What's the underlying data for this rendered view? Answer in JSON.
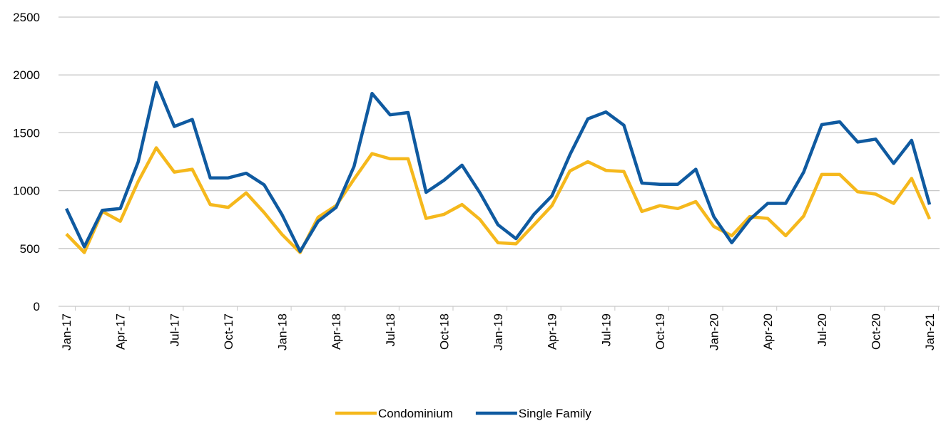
{
  "chart_data": {
    "type": "line",
    "categories": [
      "Jan-17",
      null,
      null,
      "Apr-17",
      null,
      null,
      "Jul-17",
      null,
      null,
      "Oct-17",
      null,
      null,
      "Jan-18",
      null,
      null,
      "Apr-18",
      null,
      null,
      "Jul-18",
      null,
      null,
      "Oct-18",
      null,
      null,
      "Jan-19",
      null,
      null,
      "Apr-19",
      null,
      null,
      "Jul-19",
      null,
      null,
      "Oct-19",
      null,
      null,
      "Jan-20",
      null,
      null,
      "Apr-20",
      null,
      null,
      "Jul-20",
      null,
      null,
      "Oct-20",
      null,
      null,
      "Jan-21"
    ],
    "series": [
      {
        "name": "Condominium",
        "color": "#f5b81c",
        "values": [
          625,
          465,
          820,
          735,
          1080,
          1370,
          1160,
          1185,
          880,
          855,
          980,
          810,
          620,
          465,
          770,
          870,
          1100,
          1320,
          1275,
          1275,
          760,
          795,
          880,
          750,
          550,
          540,
          705,
          870,
          1170,
          1250,
          1175,
          1165,
          820,
          870,
          845,
          905,
          690,
          610,
          775,
          760,
          610,
          780,
          1140,
          1140,
          990,
          970,
          890,
          1105,
          755
        ]
      },
      {
        "name": "Single Family",
        "color": "#0f5aa0",
        "values": [
          845,
          515,
          830,
          845,
          1250,
          1935,
          1555,
          1615,
          1110,
          1110,
          1150,
          1050,
          790,
          475,
          735,
          855,
          1210,
          1840,
          1655,
          1675,
          985,
          1090,
          1220,
          980,
          705,
          585,
          795,
          955,
          1310,
          1620,
          1680,
          1565,
          1065,
          1055,
          1055,
          1185,
          775,
          550,
          750,
          890,
          890,
          1160,
          1570,
          1595,
          1420,
          1445,
          1235,
          1435,
          880
        ]
      }
    ],
    "ylim": [
      0,
      2500
    ],
    "yticks": [
      0,
      500,
      1000,
      1500,
      2000,
      2500
    ],
    "grid": true,
    "legend": "bottom"
  }
}
